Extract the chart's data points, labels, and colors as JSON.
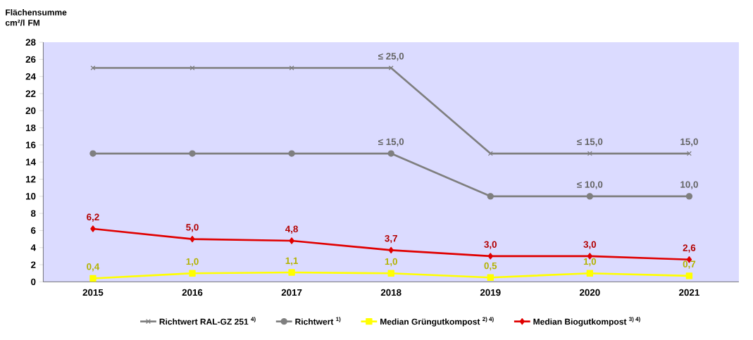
{
  "chart_data": {
    "type": "line",
    "ylabel": "Flächensumme cm²/l FM",
    "categories": [
      "2015",
      "2016",
      "2017",
      "2018",
      "2019",
      "2020",
      "2021"
    ],
    "ylim": [
      0,
      28
    ],
    "yticks": [
      0,
      2,
      4,
      6,
      8,
      10,
      12,
      14,
      16,
      18,
      20,
      22,
      24,
      26,
      28
    ],
    "grid": false,
    "legend": "bottom",
    "series": [
      {
        "name": "Richtwert RAL-GZ 251 $^{4)}$",
        "color": "#7f7f7f",
        "marker": "cross",
        "values": [
          25,
          25,
          25,
          25,
          15,
          15,
          15
        ],
        "value_labels": [
          null,
          null,
          null,
          "≤ 25,0",
          null,
          "≤ 15,0",
          "15,0"
        ]
      },
      {
        "name": "Richtwert $^{1)}$",
        "color": "#7f7f7f",
        "marker": "circle",
        "values": [
          15,
          15,
          15,
          15,
          10,
          10,
          10
        ],
        "value_labels": [
          null,
          null,
          null,
          "≤ 15,0",
          null,
          "≤ 10,0",
          "10,0"
        ]
      },
      {
        "name": "Median Grüngutkompost $^{2) 4)}$",
        "color": "#ffff00",
        "marker": "square",
        "values": [
          0.4,
          1.0,
          1.1,
          1.0,
          0.5,
          1.0,
          0.7
        ],
        "value_labels": [
          "0,4",
          "1,0",
          "1,1",
          "1,0",
          "0,5",
          "1,0",
          "0,7"
        ]
      },
      {
        "name": "Median Biogutkompost $^{3) 4)}$",
        "color": "#e00000",
        "marker": "diamond",
        "values": [
          6.2,
          5.0,
          4.8,
          3.7,
          3.0,
          3.0,
          2.6
        ],
        "value_labels": [
          "6,2",
          "5,0",
          "4,8",
          "3,7",
          "3,0",
          "3,0",
          "2,6"
        ]
      }
    ]
  }
}
